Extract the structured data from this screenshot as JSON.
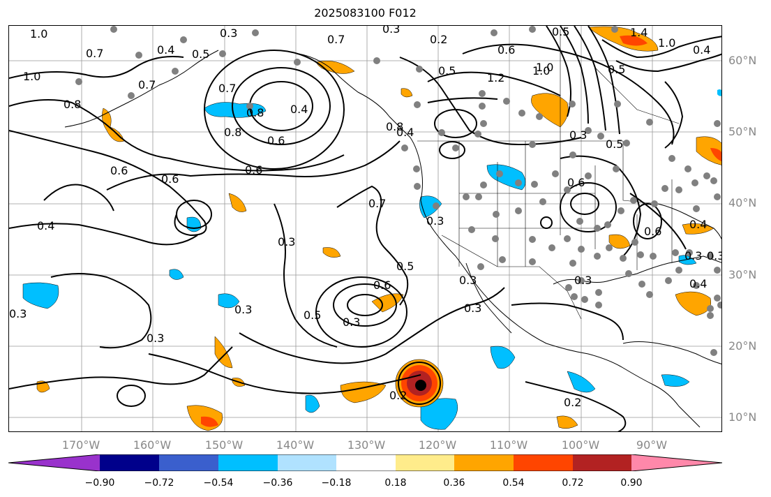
{
  "title": "2025083100 F012",
  "lat_labels": [
    "60°N",
    "50°N",
    "40°N",
    "30°N",
    "20°N",
    "10°N"
  ],
  "lon_labels": [
    "170°W",
    "160°W",
    "150°W",
    "140°W",
    "130°W",
    "120°W",
    "110°W",
    "100°W",
    "90°W"
  ],
  "colorbar": {
    "ticks": [
      "−0.90",
      "−0.72",
      "−0.54",
      "−0.36",
      "−0.18",
      "0.18",
      "0.36",
      "0.54",
      "0.72",
      "0.90"
    ],
    "colors": [
      "#9932cc",
      "#00008b",
      "#3a5fcd",
      "#00bfff",
      "#b0e2ff",
      "#ffffff",
      "#ffec8b",
      "#ffa500",
      "#ff4500",
      "#b22222",
      "#ff88aa"
    ]
  },
  "contour_labels": [
    "1.0",
    "0.3",
    "0.3",
    "0.7",
    "1.0",
    "0.4",
    "0.5",
    "0.5",
    "0.4",
    "0.7",
    "0.2",
    "0.5",
    "0.6",
    "0.7",
    "1.0",
    "0.8",
    "0.5",
    "0.4",
    "0.7",
    "0.8",
    "0.8",
    "0.6",
    "0.4",
    "0.8",
    "0.6",
    "0.6",
    "0.6",
    "1.2",
    "1.0",
    "0.3",
    "0.5",
    "0.6",
    "0.7",
    "0.6",
    "0.4",
    "0.3",
    "0.3",
    "0.4",
    "0.5",
    "0.6",
    "0.3",
    "0.5",
    "0.3",
    "0.3",
    "0.3",
    "0.3",
    "0.3",
    "0.3",
    "0.3",
    "0.2",
    "0.2",
    "0.4",
    "0.3",
    "1.4",
    "1.0"
  ],
  "storm_marker": "tropical-cyclone-center"
}
